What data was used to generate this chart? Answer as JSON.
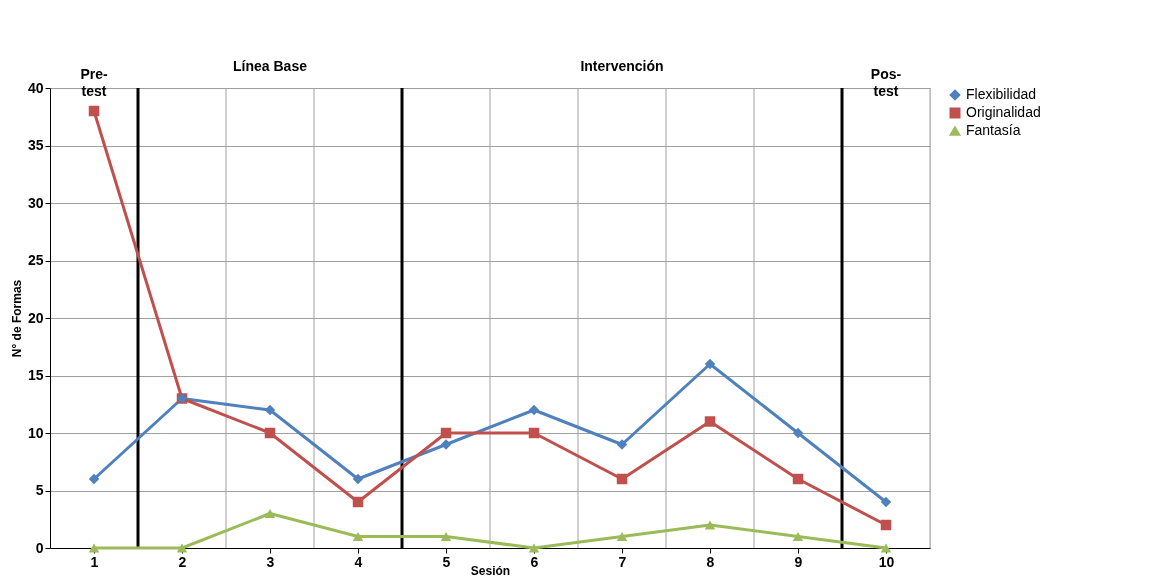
{
  "chart_data": {
    "type": "line",
    "xlabel": "Sesión",
    "ylabel": "N° de Formas",
    "x": [
      1,
      2,
      3,
      4,
      5,
      6,
      7,
      8,
      9,
      10
    ],
    "xlim": [
      0.5,
      10.5
    ],
    "xticks": [
      1,
      2,
      3,
      4,
      5,
      6,
      7,
      8,
      9,
      10
    ],
    "ylim": [
      0,
      40
    ],
    "yticks": [
      0,
      5,
      10,
      15,
      20,
      25,
      30,
      35,
      40
    ],
    "grid": true,
    "legend": "right",
    "series": [
      {
        "name": "Flexibilidad",
        "color": "#4f81bd",
        "marker": "diamond",
        "values": [
          6,
          13,
          12,
          6,
          9,
          12,
          9,
          16,
          10,
          4
        ]
      },
      {
        "name": "Originalidad",
        "color": "#c0504d",
        "marker": "square",
        "values": [
          38,
          13,
          10,
          4,
          10,
          10,
          6,
          11,
          6,
          2
        ]
      },
      {
        "name": "Fantasía",
        "color": "#9bbb59",
        "marker": "triangle",
        "values": [
          0,
          0,
          3,
          1,
          1,
          0,
          1,
          2,
          1,
          0
        ]
      }
    ],
    "ref_lines": [
      {
        "axis": "x",
        "value": 1.5,
        "color": "#000000"
      },
      {
        "axis": "x",
        "value": 4.5,
        "color": "#000000"
      },
      {
        "axis": "x",
        "value": 9.5,
        "color": "#000000"
      }
    ],
    "annotations": [
      "Pre-\ntest",
      "Línea Base",
      "Intervención",
      "Pos-\ntest"
    ]
  }
}
